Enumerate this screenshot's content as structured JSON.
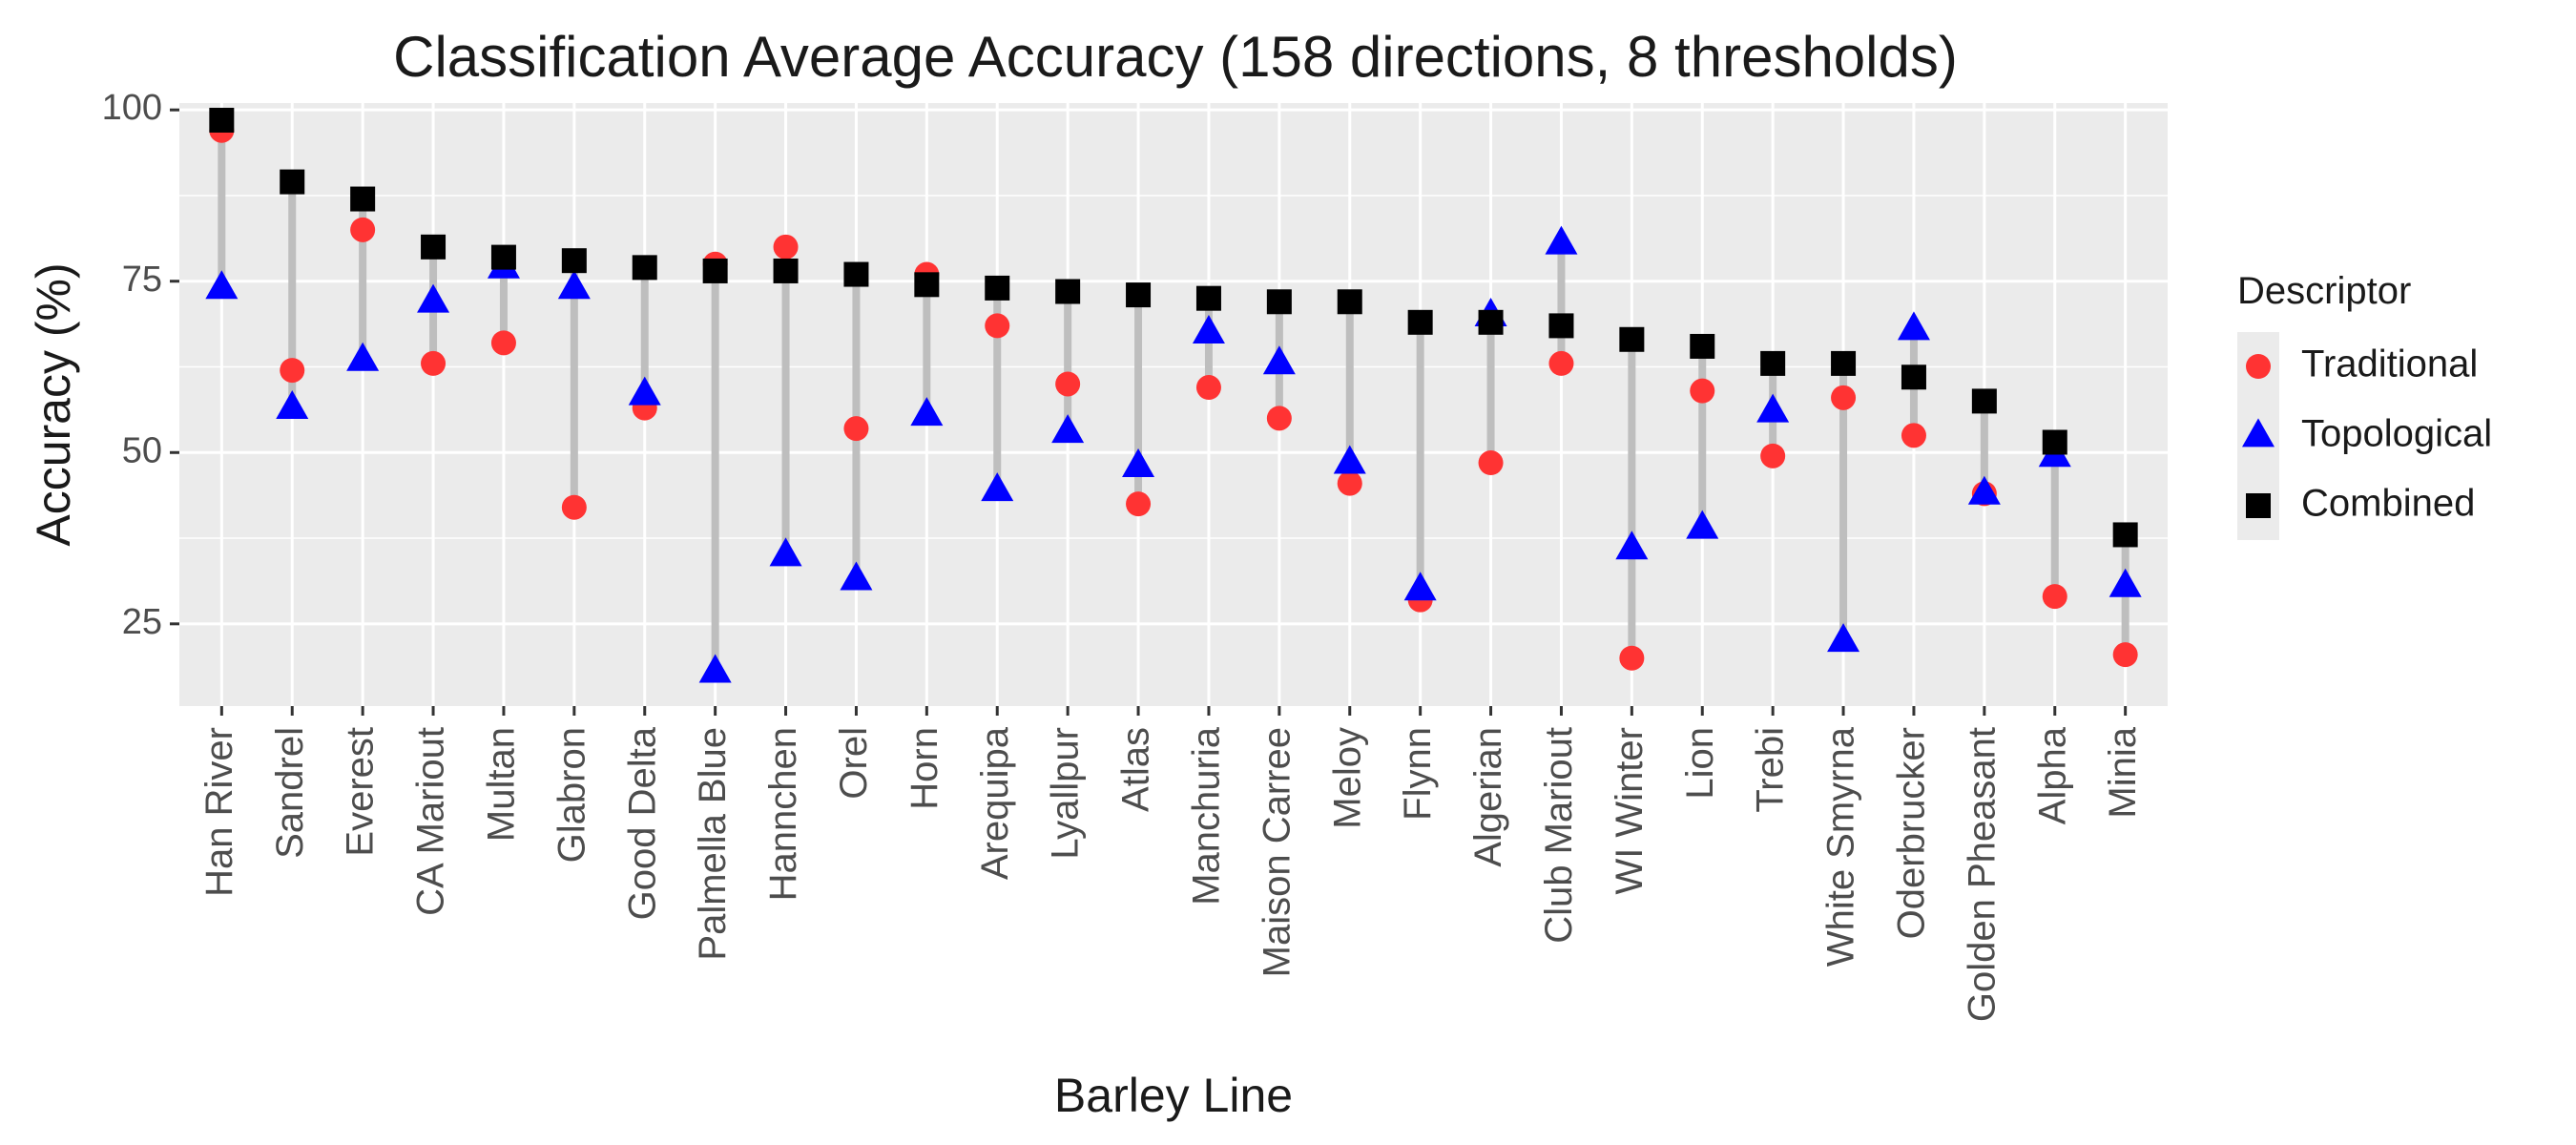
{
  "chart_data": {
    "type": "scatter",
    "title": "Classification Average Accuracy (158 directions, 8 thresholds)",
    "xlabel": "Barley Line",
    "ylabel": "Accuracy (%)",
    "ylim": [
      13,
      101
    ],
    "yticks": [
      25,
      50,
      75,
      100
    ],
    "grid": true,
    "legend": {
      "title": "Descriptor",
      "position": "right"
    },
    "categories": [
      "Han River",
      "Sandrel",
      "Everest",
      "CA Mariout",
      "Multan",
      "Glabron",
      "Good Delta",
      "Palmella Blue",
      "Hannchen",
      "Orel",
      "Horn",
      "Arequipa",
      "Lyallpur",
      "Atlas",
      "Manchuria",
      "Maison Carree",
      "Meloy",
      "Flynn",
      "Algerian",
      "Club Mariout",
      "WI Winter",
      "Lion",
      "Trebi",
      "White Smyrna",
      "Oderbrucker",
      "Golden Pheasant",
      "Alpha",
      "Minia"
    ],
    "series": [
      {
        "name": "Traditional",
        "shape": "circle",
        "color": "#ff3333",
        "values": [
          97,
          62,
          82.5,
          63,
          66,
          42,
          56.5,
          77.5,
          80,
          53.5,
          76,
          68.5,
          60,
          42.5,
          59.5,
          55,
          45.5,
          28.5,
          48.5,
          63,
          20,
          59,
          49.5,
          58,
          52.5,
          44,
          29,
          20.5
        ]
      },
      {
        "name": "Topological",
        "shape": "triangle",
        "color": "#0000ff",
        "values": [
          74,
          56.5,
          63.5,
          72,
          77,
          74,
          58.5,
          18,
          35,
          31.5,
          55.5,
          44.5,
          53,
          48,
          67.5,
          63,
          48.5,
          30,
          70,
          80.5,
          36,
          39,
          56,
          22.5,
          68,
          44,
          49.5,
          30.5
        ]
      },
      {
        "name": "Combined",
        "shape": "square",
        "color": "#000000",
        "values": [
          98.5,
          89.5,
          87,
          80,
          78.5,
          78,
          77,
          76.5,
          76.5,
          76,
          74.5,
          74,
          73.5,
          73,
          72.5,
          72,
          72,
          69,
          69,
          68.5,
          66.5,
          65.5,
          63,
          63,
          61,
          57.5,
          51.5,
          38
        ]
      }
    ],
    "segment_color": "#bebebe",
    "panel_background": "#ebebeb",
    "grid_color": "#ffffff"
  }
}
